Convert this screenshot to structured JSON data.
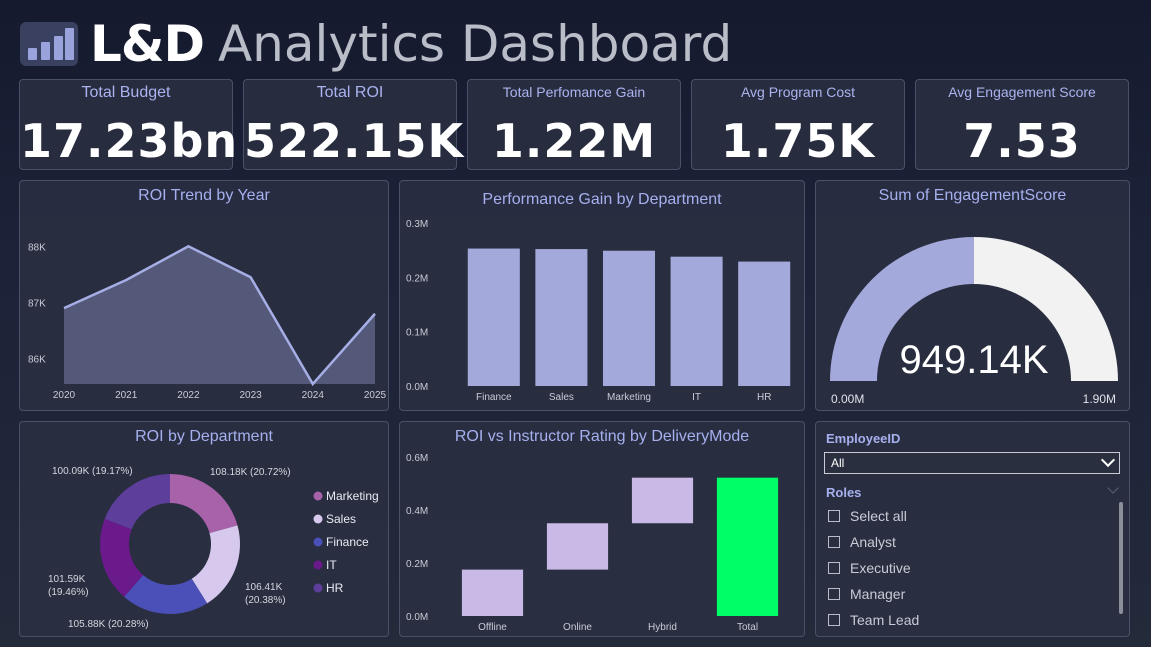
{
  "header": {
    "title_bold": "L&D",
    "title_light": "Analytics Dashboard",
    "logo_icon": "bar-chart-icon"
  },
  "kpis": [
    {
      "label": "Total Budget",
      "value": "17.23bn"
    },
    {
      "label": "Total ROI",
      "value": "522.15K"
    },
    {
      "label": "Total Perfomance Gain",
      "value": "1.22M"
    },
    {
      "label": "Avg Program Cost",
      "value": "1.75K"
    },
    {
      "label": "Avg Engagement Score",
      "value": "7.53"
    }
  ],
  "colors": {
    "accent": "#9aa3dc",
    "line": "#a6aee6",
    "area": "#5c6284",
    "bar": "#a4a9db",
    "total_bar": "#00ff66",
    "waterfall": "#c9b9e6",
    "gauge_fill": "#a4a9db",
    "gauge_rest": "#f2f2f2"
  },
  "roi_trend": {
    "title": "ROI Trend by Year",
    "chart_data": {
      "type": "area",
      "x": [
        "2020",
        "2021",
        "2022",
        "2023",
        "2024",
        "2025"
      ],
      "values": [
        86900,
        87400,
        88000,
        87450,
        85550,
        86800
      ],
      "ylim": [
        85550,
        88450
      ],
      "yticks": [
        86000,
        87000,
        88000
      ],
      "ytick_labels": [
        "86K",
        "87K",
        "88K"
      ]
    }
  },
  "perf_gain": {
    "title": "Performance Gain by Department",
    "chart_data": {
      "type": "bar",
      "categories": [
        "Finance",
        "Sales",
        "Marketing",
        "IT",
        "HR"
      ],
      "values": [
        0.253,
        0.252,
        0.249,
        0.238,
        0.229
      ],
      "ylim": [
        0,
        0.3
      ],
      "yticks": [
        0,
        0.1,
        0.2,
        0.3
      ],
      "ytick_labels": [
        "0.0M",
        "0.1M",
        "0.2M",
        "0.3M"
      ]
    }
  },
  "engagement": {
    "title": "Sum of EngagementScore",
    "chart_data": {
      "type": "gauge",
      "value": 949.14,
      "min": 0,
      "max": 1900,
      "value_label": "949.14K",
      "min_label": "0.00M",
      "max_label": "1.90M"
    }
  },
  "roi_dept": {
    "title": "ROI by Department",
    "chart_data": {
      "type": "pie",
      "slices": [
        {
          "name": "Marketing",
          "value": 108.18,
          "label": "108.18K (20.72%)",
          "color": "#a762a9"
        },
        {
          "name": "Sales",
          "value": 106.41,
          "label": "106.41K (20.38%)",
          "color": "#d7c9ee"
        },
        {
          "name": "Finance",
          "value": 105.88,
          "label": "105.88K (20.28%)",
          "color": "#4a50b8"
        },
        {
          "name": "IT",
          "value": 101.59,
          "label": "101.59K (19.46%)",
          "color": "#6a1a8a"
        },
        {
          "name": "HR",
          "value": 100.09,
          "label": "100.09K (19.17%)",
          "color": "#5d3e9a"
        }
      ],
      "legend": [
        "Marketing",
        "Sales",
        "Finance",
        "IT",
        "HR"
      ],
      "label_lines": {
        "Sales": [
          "106.41K",
          "(20.38%)"
        ],
        "Finance": [
          "105.88K (20.28%)"
        ],
        "IT": [
          "101.59K",
          "(19.46%)"
        ],
        "HR": [
          "100.09K (19.17%)"
        ],
        "Marketing": [
          "108.18K (20.72%)"
        ]
      }
    }
  },
  "roi_rating": {
    "title": "ROI vs Instructor Rating by DeliveryMode",
    "chart_data": {
      "type": "bar",
      "subtype": "waterfall",
      "categories": [
        "Offline",
        "Online",
        "Hybrid",
        "Total"
      ],
      "increments": [
        0.175,
        0.175,
        0.172
      ],
      "total": 0.522,
      "ylim": [
        0,
        0.6
      ],
      "yticks": [
        0,
        0.2,
        0.4,
        0.6
      ],
      "ytick_labels": [
        "0.0M",
        "0.2M",
        "0.4M",
        "0.6M"
      ]
    }
  },
  "slicer": {
    "employee_label": "EmployeeID",
    "employee_value": "All",
    "roles_label": "Roles",
    "roles": [
      "Select all",
      "Analyst",
      "Executive",
      "Manager",
      "Team Lead"
    ]
  }
}
